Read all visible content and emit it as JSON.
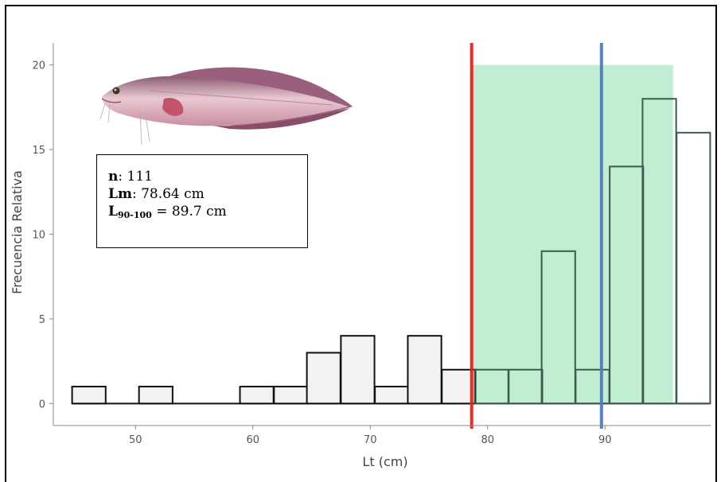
{
  "chart_data": {
    "type": "bar",
    "xlabel": "Lt (cm)",
    "ylabel": "Frecuencia Relativa",
    "xlim": [
      43,
      99
    ],
    "ylim": [
      -1.3,
      21.3
    ],
    "xticks": [
      50,
      60,
      70,
      80,
      90
    ],
    "yticks": [
      0,
      5,
      10,
      15,
      20
    ],
    "bin_width": 2.86,
    "bin_starts": [
      44.6,
      47.5,
      50.3,
      53.2,
      56.0,
      58.9,
      61.8,
      64.6,
      67.5,
      70.4,
      73.2,
      76.1,
      78.9,
      81.8,
      84.6,
      87.5,
      90.4,
      93.2,
      96.1
    ],
    "values": [
      1,
      0,
      1,
      0,
      0,
      1,
      1,
      3,
      4,
      1,
      4,
      2,
      2,
      2,
      9,
      2,
      14,
      18,
      16
    ],
    "highlight_region": {
      "x_start": 78.64,
      "x_end": 95.8,
      "y_top": 20,
      "color": "#a6e6bf"
    },
    "vlines": [
      {
        "x": 78.64,
        "color": "#e8211c",
        "label": "Lm"
      },
      {
        "x": 89.7,
        "color": "#4f7bbd",
        "label": "L90-100"
      }
    ],
    "grid": false
  },
  "stats": {
    "n_label": "n",
    "n_value": ": 111",
    "lm_label": "Lm",
    "lm_value": ": 78.64 cm",
    "l_label": "L",
    "l_sub": "90-100",
    "l_value": " = 89.7 cm"
  },
  "colors": {
    "bar_fill": "#f2f2f2",
    "bar_stroke": "#111111",
    "highlight_bar_stroke": "#3b5c48"
  }
}
